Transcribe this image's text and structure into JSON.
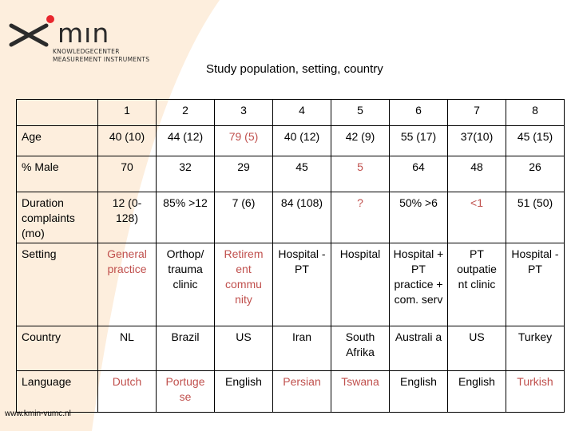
{
  "logo": {
    "word": "mın",
    "sub_line1": "KNOWLEDGECENTER",
    "sub_line2": "MEASUREMENT INSTRUMENTS"
  },
  "title": "Study population, setting, country",
  "table": {
    "header": [
      "",
      "1",
      "2",
      "3",
      "4",
      "5",
      "6",
      "7",
      "8"
    ],
    "rows": [
      {
        "label": "Age",
        "cells": [
          "40 (10)",
          "44 (12)",
          "79 (5)",
          "40 (12)",
          "42 (9)",
          "55 (17)",
          "37(10)",
          "45 (15)"
        ]
      },
      {
        "label": "% Male",
        "cells": [
          "70",
          "32",
          "29",
          "45",
          "5",
          "64",
          "48",
          "26"
        ]
      },
      {
        "label": "Duration complaints (mo)",
        "cells": [
          "12 (0-128)",
          "85% >12",
          "7 (6)",
          "84 (108)",
          "?",
          "50% >6",
          "<1",
          "51 (50)"
        ]
      },
      {
        "label": "Setting",
        "cells": [
          "General practice",
          "Orthop/ trauma clinic",
          "Retirem ent commu nity",
          "Hospital - PT",
          "Hospital",
          "Hospital + PT practice + com. serv",
          "PT outpatie nt clinic",
          "Hospital - PT"
        ]
      },
      {
        "label": "Country",
        "cells": [
          "NL",
          "Brazil",
          "US",
          "Iran",
          "South Afrika",
          "Australi a",
          "US",
          "Turkey"
        ]
      },
      {
        "label": "Language",
        "cells": [
          "Dutch",
          "Portuge se",
          "English",
          "Persian",
          "Tswana",
          "English",
          "English",
          "Turkish"
        ]
      }
    ]
  },
  "footer": "www.kmin-vumc.nl",
  "colors": {
    "wedge": "#fdeedd",
    "accent_red": "#e8262d",
    "highlight_text": "#c0504d"
  }
}
